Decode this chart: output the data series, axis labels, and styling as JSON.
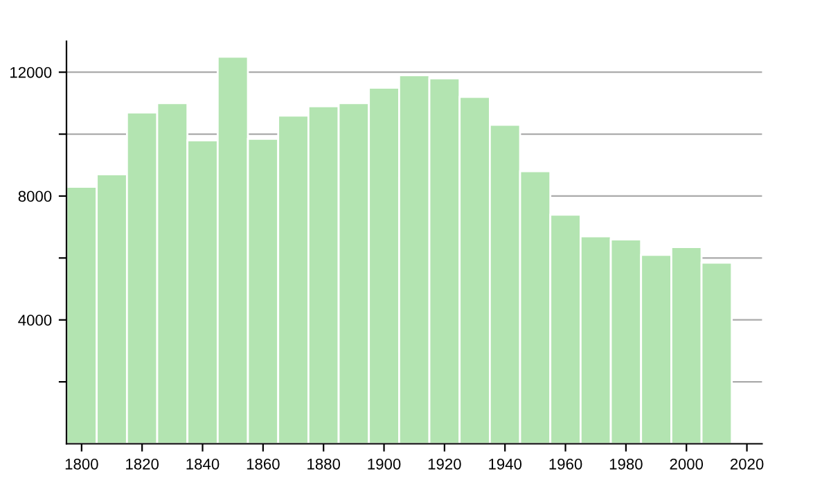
{
  "chart_data": {
    "type": "bar",
    "x": [
      1800,
      1810,
      1820,
      1830,
      1840,
      1850,
      1860,
      1870,
      1880,
      1890,
      1900,
      1910,
      1920,
      1930,
      1940,
      1950,
      1960,
      1970,
      1980,
      1990,
      2000,
      2010
    ],
    "values": [
      8300,
      8700,
      10700,
      11000,
      9800,
      12500,
      9850,
      10600,
      10900,
      11000,
      11500,
      11900,
      11800,
      11200,
      10300,
      8800,
      7400,
      6700,
      6600,
      6100,
      6350,
      5850
    ],
    "color": "#b3e4b1",
    "xlim": [
      1795,
      2025
    ],
    "xticks": [
      1800,
      1820,
      1840,
      1860,
      1880,
      1900,
      1920,
      1940,
      1960,
      1980,
      2000,
      2020
    ],
    "ylim": [
      0,
      13000
    ],
    "yticks": [
      {
        "value": 2000,
        "label": null
      },
      4000,
      {
        "value": 6000,
        "label": null
      },
      8000,
      {
        "value": 10000,
        "label": null
      },
      12000
    ],
    "grid": "y",
    "legend": false
  }
}
